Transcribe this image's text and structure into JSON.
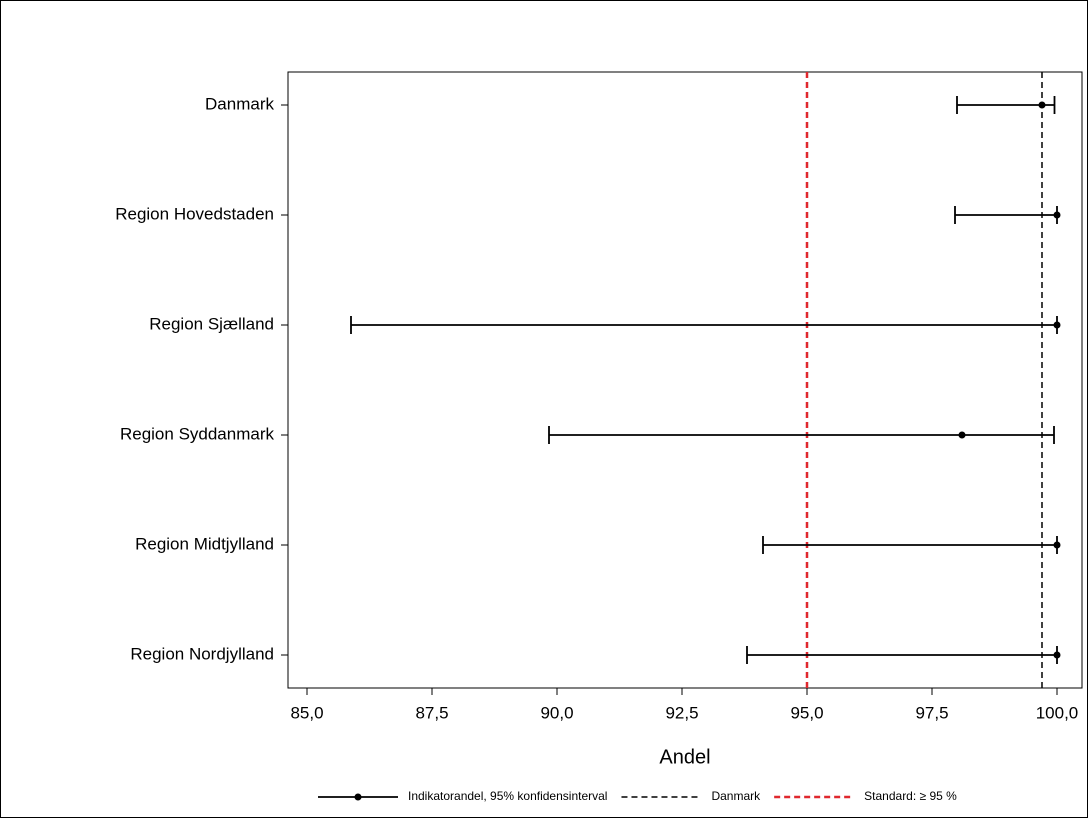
{
  "chart_data": {
    "type": "errorbar",
    "x_label": "Andel",
    "categories": [
      "Danmark",
      "Region Hovedstaden",
      "Region Sjælland",
      "Region Syddanmark",
      "Region Midtjylland",
      "Region Nordjylland"
    ],
    "series": [
      {
        "name": "Indikatorandel, 95% konfidensinterval",
        "color": "#000000",
        "values": [
          99.7,
          100,
          100,
          98.1,
          100,
          100
        ],
        "lower": [
          98.0,
          97.96,
          85.88,
          89.84,
          94.12,
          93.8
        ],
        "upper": [
          99.95,
          100,
          100,
          99.94,
          100,
          100
        ]
      }
    ],
    "reference_lines": [
      {
        "name": "Danmark",
        "value": 99.7,
        "color": "#000000"
      },
      {
        "name": "Standard: ≥ 95 %",
        "value": 95,
        "color": "#e0282e"
      }
    ],
    "xlim": [
      84.62,
      100.5
    ],
    "xticks": [
      {
        "value": 85,
        "label": "85,0"
      },
      {
        "value": 87.5,
        "label": "87,5"
      },
      {
        "value": 90,
        "label": "90,0"
      },
      {
        "value": 92.5,
        "label": "92,5"
      },
      {
        "value": 95,
        "label": "95,0"
      },
      {
        "value": 97.5,
        "label": "97,5"
      },
      {
        "value": 100,
        "label": "100,0"
      }
    ]
  }
}
